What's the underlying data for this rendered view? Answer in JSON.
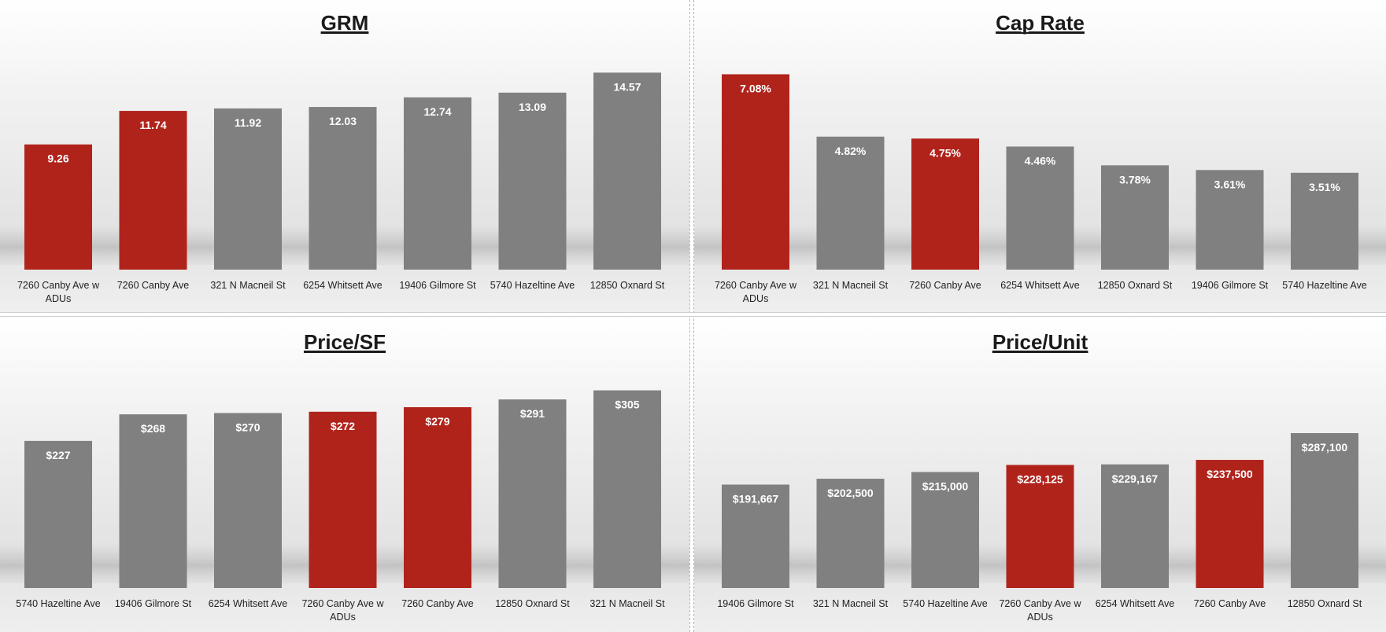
{
  "colors": {
    "highlight": "#b0231b",
    "neutral": "#808080"
  },
  "chart_data": [
    {
      "type": "bar",
      "title": "GRM",
      "categories": [
        "7260 Canby Ave w ADUs",
        "7260 Canby Ave",
        "321 N Macneil St",
        "6254 Whitsett Ave",
        "19406 Gilmore St",
        "5740 Hazeltine Ave",
        "12850 Oxnard St"
      ],
      "values": [
        9.26,
        11.74,
        11.92,
        12.03,
        12.74,
        13.09,
        14.57
      ],
      "labels": [
        "9.26",
        "11.74",
        "11.92",
        "12.03",
        "12.74",
        "13.09",
        "14.57"
      ],
      "highlight": [
        true,
        true,
        false,
        false,
        false,
        false,
        false
      ],
      "ylim": [
        0,
        15
      ],
      "xlabel": "",
      "ylabel": ""
    },
    {
      "type": "bar",
      "title": "Cap Rate",
      "categories": [
        "7260 Canby Ave w ADUs",
        "321 N Macneil St",
        "7260 Canby Ave",
        "6254 Whitsett Ave",
        "12850 Oxnard St",
        "19406 Gilmore St",
        "5740 Hazeltine Ave"
      ],
      "values": [
        7.08,
        4.82,
        4.75,
        4.46,
        3.78,
        3.61,
        3.51
      ],
      "labels": [
        "7.08%",
        "4.82%",
        "4.75%",
        "4.46%",
        "3.78%",
        "3.61%",
        "3.51%"
      ],
      "highlight": [
        true,
        false,
        true,
        false,
        false,
        false,
        false
      ],
      "ylim": [
        0,
        7.35
      ],
      "xlabel": "",
      "ylabel": ""
    },
    {
      "type": "bar",
      "title": "Price/SF",
      "categories": [
        "5740 Hazeltine Ave",
        "19406 Gilmore St",
        "6254 Whitsett Ave",
        "7260 Canby Ave w ADUs",
        "7260 Canby Ave",
        "12850 Oxnard St",
        "321 N Macneil St"
      ],
      "values": [
        227,
        268,
        270,
        272,
        279,
        291,
        305
      ],
      "labels": [
        "$227",
        "$268",
        "$270",
        "$272",
        "$279",
        "$291",
        "$305"
      ],
      "highlight": [
        false,
        false,
        false,
        true,
        true,
        false,
        false
      ],
      "ylim": [
        0,
        313
      ],
      "xlabel": "",
      "ylabel": ""
    },
    {
      "type": "bar",
      "title": "Price/Unit",
      "categories": [
        "19406 Gilmore St",
        "321 N Macneil St",
        "5740 Hazeltine Ave",
        "7260 Canby Ave w ADUs",
        "6254 Whitsett Ave",
        "7260 Canby Ave",
        "12850 Oxnard St"
      ],
      "values": [
        191667,
        202500,
        215000,
        228125,
        229167,
        237500,
        287100
      ],
      "labels": [
        "$191,667",
        "$202,500",
        "$215,000",
        "$228,125",
        "$229,167",
        "$237,500",
        "$287,100"
      ],
      "highlight": [
        false,
        false,
        false,
        true,
        false,
        true,
        false
      ],
      "ylim": [
        0,
        376000
      ],
      "xlabel": "",
      "ylabel": ""
    }
  ]
}
